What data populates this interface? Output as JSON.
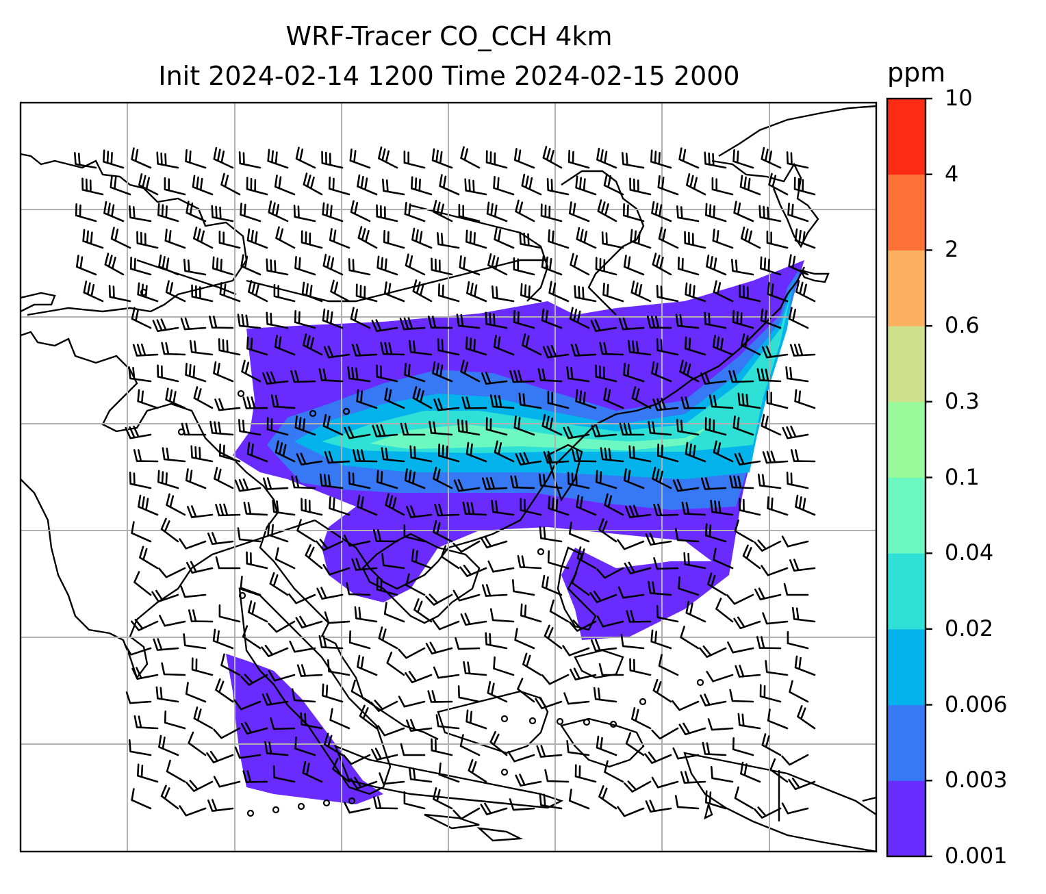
{
  "title": {
    "line1": "WRF-Tracer CO_CCH 4km",
    "line2": "Init 2024-02-14 1200 Time 2024-02-15 2000"
  },
  "colorbar": {
    "unit": "ppm",
    "levels": [
      "0.001",
      "0.003",
      "0.006",
      "0.02",
      "0.04",
      "0.1",
      "0.3",
      "0.6",
      "2",
      "4",
      "10"
    ],
    "colors": [
      "#6a2bff",
      "#3778f4",
      "#04b2ec",
      "#2ee0d6",
      "#6cf8c0",
      "#99fa9b",
      "#cfe08a",
      "#fdb060",
      "#fe7238",
      "#fd2a14"
    ]
  },
  "map": {
    "gridlines": true,
    "coastline_color": "#000000",
    "plume_color_low": "#6a2bff",
    "plume_color_mid": "#3778f4",
    "plume_color_hi": "#04b2ec",
    "plume_color_core": "#6cf8c0"
  }
}
